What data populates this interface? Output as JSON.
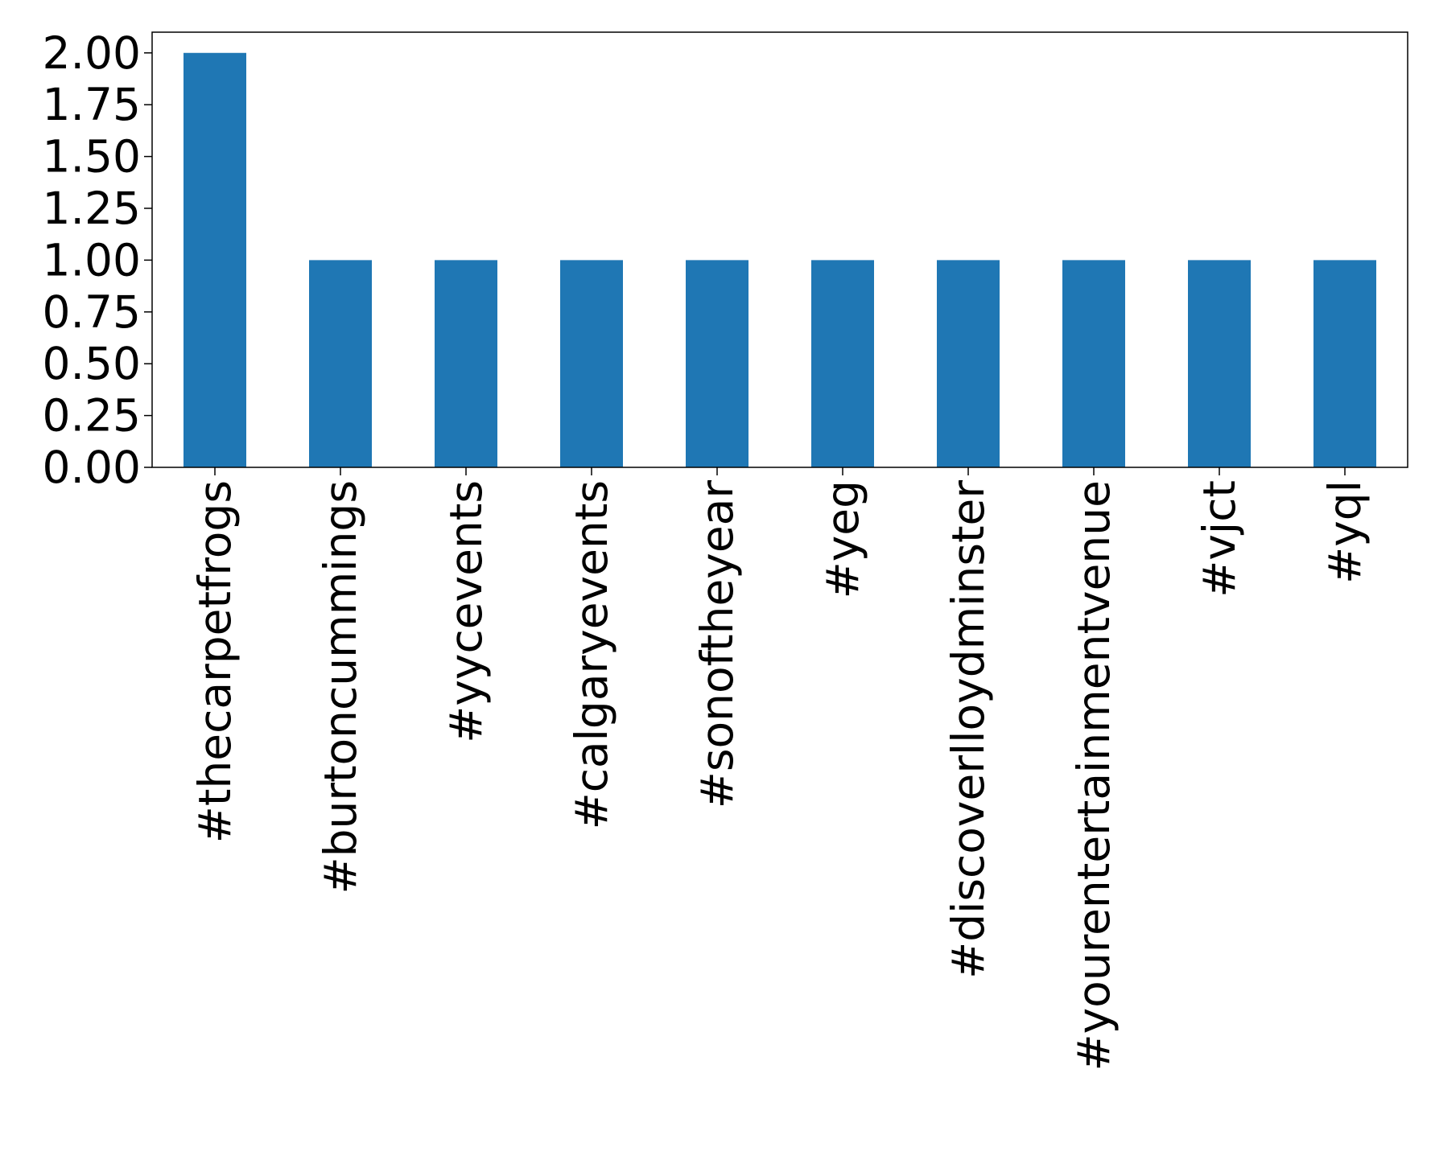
{
  "chart_data": {
    "type": "bar",
    "categories": [
      "#thecarpetfrogs",
      "#burtoncummings",
      "#yycevents",
      "#calgaryevents",
      "#sonoftheyear",
      "#yeg",
      "#discoverlloydminster",
      "#yourentertainmentvenue",
      "#vjct",
      "#yql"
    ],
    "values": [
      2,
      1,
      1,
      1,
      1,
      1,
      1,
      1,
      1,
      1
    ],
    "color": "#1f77b4",
    "ylim": [
      0,
      2.1
    ],
    "yticks": [
      {
        "value": 0,
        "label": "0.00"
      },
      {
        "value": 0.25,
        "label": "0.25"
      },
      {
        "value": 0.5,
        "label": "0.50"
      },
      {
        "value": 0.75,
        "label": "0.75"
      },
      {
        "value": 1,
        "label": "1.00"
      },
      {
        "value": 1.25,
        "label": "1.25"
      },
      {
        "value": 1.5,
        "label": "1.50"
      },
      {
        "value": 1.75,
        "label": "1.75"
      },
      {
        "value": 2,
        "label": "2.00"
      }
    ],
    "grid": false
  }
}
